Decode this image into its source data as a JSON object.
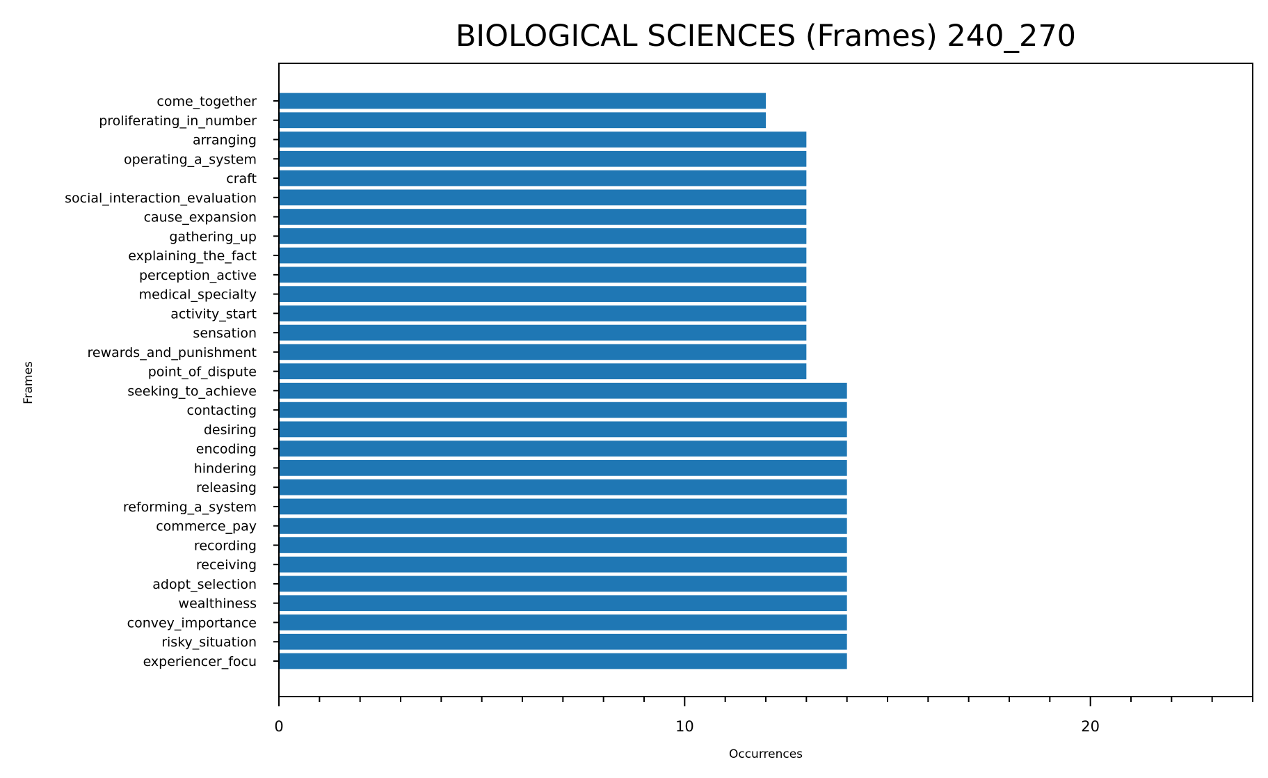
{
  "chart_data": {
    "type": "bar",
    "orientation": "horizontal",
    "title": "BIOLOGICAL SCIENCES (Frames) 240_270",
    "xlabel": "Occurrences",
    "ylabel": "Frames",
    "xlim": [
      0,
      24
    ],
    "xticks": [
      0,
      10,
      20
    ],
    "grid": false,
    "bar_color": "#1f77b4",
    "categories": [
      "come_together",
      "proliferating_in_number",
      "arranging",
      "operating_a_system",
      "craft",
      "social_interaction_evaluation",
      "cause_expansion",
      "gathering_up",
      "explaining_the_fact",
      "perception_active",
      "medical_specialty",
      "activity_start",
      "sensation",
      "rewards_and_punishment",
      "point_of_dispute",
      "seeking_to_achieve",
      "contacting",
      "desiring",
      "encoding",
      "hindering",
      "releasing",
      "reforming_a_system",
      "commerce_pay",
      "recording",
      "receiving",
      "adopt_selection",
      "wealthiness",
      "convey_importance",
      "risky_situation",
      "experiencer_focu"
    ],
    "values": [
      12,
      12,
      13,
      13,
      13,
      13,
      13,
      13,
      13,
      13,
      13,
      13,
      13,
      13,
      13,
      14,
      14,
      14,
      14,
      14,
      14,
      14,
      14,
      14,
      14,
      14,
      14,
      14,
      14,
      14
    ]
  }
}
